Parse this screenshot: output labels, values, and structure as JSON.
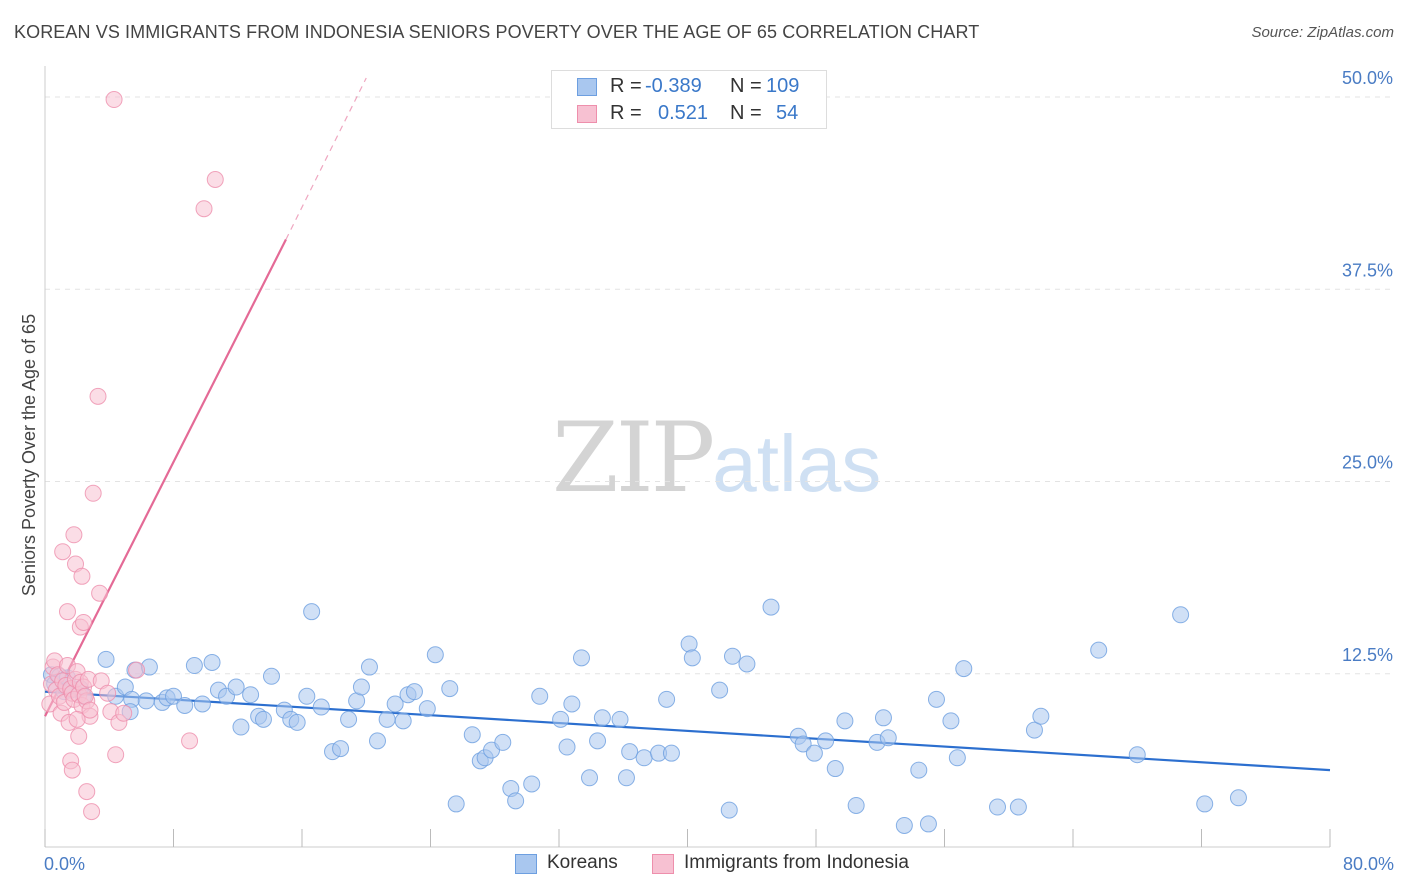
{
  "title": "KOREAN VS IMMIGRANTS FROM INDONESIA SENIORS POVERTY OVER THE AGE OF 65 CORRELATION CHART",
  "source": "Source: ZipAtlas.com",
  "watermark": {
    "part1": "ZIP",
    "part2": "atlas"
  },
  "colors": {
    "koreans_fill": "#a9c7ef",
    "koreans_stroke": "#6d9fe0",
    "koreans_line": "#2c6fcf",
    "indonesia_fill": "#f7c1d2",
    "indonesia_stroke": "#ee8fac",
    "indonesia_line": "#e46a96",
    "tick_label": "#4a7cc4",
    "grid": "#e3e3e3"
  },
  "stats": {
    "rows": [
      {
        "r_label": "R =",
        "r_value": "-0.389",
        "n_label": "N =",
        "n_value": "109"
      },
      {
        "r_label": "R =",
        "r_value": "0.521",
        "n_label": "N =",
        "n_value": "54"
      }
    ]
  },
  "legend": {
    "koreans": "Koreans",
    "indonesia": "Immigrants from Indonesia"
  },
  "chart_data": {
    "type": "scatter",
    "title": "KOREAN VS IMMIGRANTS FROM INDONESIA SENIORS POVERTY OVER THE AGE OF 65 CORRELATION CHART",
    "xlabel": "",
    "ylabel": "Seniors Poverty Over the Age of 65",
    "xlim": [
      0,
      80
    ],
    "ylim": [
      0,
      50
    ],
    "x_tick_labels": {
      "left": "0.0%",
      "right": "80.0%"
    },
    "y_ticks": [
      {
        "value": 12.5,
        "label": "12.5%"
      },
      {
        "value": 25.0,
        "label": "25.0%"
      },
      {
        "value": 37.5,
        "label": "37.5%"
      },
      {
        "value": 50.0,
        "label": "50.0%"
      }
    ],
    "grid": true,
    "legend_position": "bottom-center",
    "series": [
      {
        "name": "Koreans",
        "trend": {
          "x0": 0.0,
          "y0": 10.1,
          "x1": 80.0,
          "y1": 5.0,
          "dashed_to": null
        },
        "points": [
          [
            0.4,
            11.2
          ],
          [
            0.6,
            10.6
          ],
          [
            0.9,
            11.1
          ],
          [
            1.2,
            10.1
          ],
          [
            1.4,
            11.0
          ],
          [
            1.6,
            10.2
          ],
          [
            2.2,
            10.3
          ],
          [
            2.4,
            9.8
          ],
          [
            3.8,
            12.2
          ],
          [
            4.4,
            9.8
          ],
          [
            5.0,
            10.4
          ],
          [
            5.4,
            9.6
          ],
          [
            5.3,
            8.8
          ],
          [
            5.6,
            11.5
          ],
          [
            6.3,
            9.5
          ],
          [
            6.5,
            11.7
          ],
          [
            7.3,
            9.4
          ],
          [
            7.6,
            9.7
          ],
          [
            8.0,
            9.8
          ],
          [
            8.7,
            9.2
          ],
          [
            9.3,
            11.8
          ],
          [
            9.8,
            9.3
          ],
          [
            10.4,
            12.0
          ],
          [
            10.8,
            10.2
          ],
          [
            11.3,
            9.8
          ],
          [
            11.9,
            10.4
          ],
          [
            12.2,
            7.8
          ],
          [
            12.8,
            9.9
          ],
          [
            13.3,
            8.5
          ],
          [
            13.6,
            8.3
          ],
          [
            14.1,
            11.1
          ],
          [
            14.9,
            8.9
          ],
          [
            15.3,
            8.3
          ],
          [
            15.7,
            8.1
          ],
          [
            16.3,
            9.8
          ],
          [
            16.6,
            15.3
          ],
          [
            17.2,
            9.1
          ],
          [
            17.9,
            6.2
          ],
          [
            18.4,
            6.4
          ],
          [
            18.9,
            8.3
          ],
          [
            19.4,
            9.5
          ],
          [
            19.7,
            10.4
          ],
          [
            20.2,
            11.7
          ],
          [
            20.7,
            6.9
          ],
          [
            21.3,
            8.3
          ],
          [
            21.8,
            9.3
          ],
          [
            22.3,
            8.2
          ],
          [
            22.6,
            9.9
          ],
          [
            23.0,
            10.1
          ],
          [
            23.8,
            9.0
          ],
          [
            24.3,
            12.5
          ],
          [
            25.2,
            10.3
          ],
          [
            25.6,
            2.8
          ],
          [
            26.6,
            7.3
          ],
          [
            27.1,
            5.6
          ],
          [
            27.4,
            5.8
          ],
          [
            27.8,
            6.3
          ],
          [
            28.5,
            6.8
          ],
          [
            29.0,
            3.8
          ],
          [
            29.3,
            3.0
          ],
          [
            30.3,
            4.1
          ],
          [
            30.8,
            9.8
          ],
          [
            32.1,
            8.3
          ],
          [
            32.5,
            6.5
          ],
          [
            32.8,
            9.3
          ],
          [
            33.4,
            12.3
          ],
          [
            33.9,
            4.5
          ],
          [
            34.4,
            6.9
          ],
          [
            34.7,
            8.4
          ],
          [
            35.8,
            8.3
          ],
          [
            36.2,
            4.5
          ],
          [
            36.4,
            6.2
          ],
          [
            37.3,
            5.8
          ],
          [
            38.2,
            6.1
          ],
          [
            38.7,
            9.6
          ],
          [
            39.0,
            6.1
          ],
          [
            40.1,
            13.2
          ],
          [
            40.3,
            12.3
          ],
          [
            42.0,
            10.2
          ],
          [
            42.6,
            2.4
          ],
          [
            42.8,
            12.4
          ],
          [
            43.7,
            11.9
          ],
          [
            45.2,
            15.6
          ],
          [
            46.9,
            7.2
          ],
          [
            47.2,
            6.7
          ],
          [
            47.9,
            6.1
          ],
          [
            48.6,
            6.9
          ],
          [
            49.2,
            5.1
          ],
          [
            49.8,
            8.2
          ],
          [
            50.5,
            2.7
          ],
          [
            51.8,
            6.8
          ],
          [
            52.2,
            8.4
          ],
          [
            52.5,
            7.1
          ],
          [
            53.5,
            1.4
          ],
          [
            54.4,
            5.0
          ],
          [
            55.0,
            1.5
          ],
          [
            55.5,
            9.6
          ],
          [
            56.4,
            8.2
          ],
          [
            56.8,
            5.8
          ],
          [
            57.2,
            11.6
          ],
          [
            59.3,
            2.6
          ],
          [
            60.6,
            2.6
          ],
          [
            61.6,
            7.6
          ],
          [
            62.0,
            8.5
          ],
          [
            65.6,
            12.8
          ],
          [
            70.7,
            15.1
          ],
          [
            72.2,
            2.8
          ],
          [
            74.3,
            3.2
          ],
          [
            68.0,
            6.0
          ]
        ]
      },
      {
        "name": "Immigrants from Indonesia",
        "trend": {
          "x0": 0.0,
          "y0": 8.5,
          "x1": 15.0,
          "y1": 39.5,
          "dashed_to": {
            "x": 20.0,
            "y": 50.0
          }
        },
        "points": [
          [
            0.3,
            9.3
          ],
          [
            0.4,
            10.6
          ],
          [
            0.5,
            11.7
          ],
          [
            0.6,
            12.1
          ],
          [
            0.7,
            10.2
          ],
          [
            0.8,
            11.2
          ],
          [
            0.9,
            9.8
          ],
          [
            1.0,
            8.7
          ],
          [
            1.1,
            10.8
          ],
          [
            1.2,
            9.4
          ],
          [
            1.3,
            10.5
          ],
          [
            1.4,
            11.8
          ],
          [
            1.5,
            8.1
          ],
          [
            1.6,
            10.3
          ],
          [
            1.7,
            10.0
          ],
          [
            1.8,
            9.6
          ],
          [
            1.9,
            10.9
          ],
          [
            2.0,
            11.4
          ],
          [
            2.1,
            9.9
          ],
          [
            2.2,
            10.7
          ],
          [
            2.3,
            9.2
          ],
          [
            2.4,
            10.4
          ],
          [
            2.6,
            9.5
          ],
          [
            2.7,
            10.9
          ],
          [
            2.8,
            8.5
          ],
          [
            1.1,
            19.2
          ],
          [
            1.4,
            15.3
          ],
          [
            1.6,
            5.6
          ],
          [
            1.7,
            5.0
          ],
          [
            1.8,
            20.3
          ],
          [
            1.9,
            18.4
          ],
          [
            2.0,
            8.3
          ],
          [
            2.1,
            7.2
          ],
          [
            2.2,
            14.3
          ],
          [
            2.3,
            17.6
          ],
          [
            2.4,
            14.6
          ],
          [
            2.5,
            9.8
          ],
          [
            2.6,
            3.6
          ],
          [
            2.8,
            8.9
          ],
          [
            2.9,
            2.3
          ],
          [
            3.0,
            23.0
          ],
          [
            3.3,
            29.3
          ],
          [
            3.4,
            16.5
          ],
          [
            3.5,
            10.8
          ],
          [
            3.9,
            10.0
          ],
          [
            4.1,
            8.8
          ],
          [
            4.3,
            48.6
          ],
          [
            4.4,
            6.0
          ],
          [
            4.6,
            8.1
          ],
          [
            4.9,
            8.7
          ],
          [
            5.7,
            11.5
          ],
          [
            9.0,
            6.9
          ],
          [
            9.9,
            41.5
          ],
          [
            10.6,
            43.4
          ]
        ]
      }
    ]
  }
}
